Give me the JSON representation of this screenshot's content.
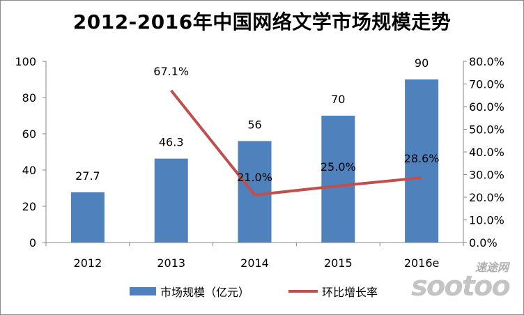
{
  "title": "2012-2016年中国网络文学市场规模走势",
  "colors": {
    "bar": "#4f81bd",
    "line": "#c0504d",
    "grid": "#d9d9d9"
  },
  "watermark": {
    "top_text": "速途网",
    "main_text": "sootoo"
  },
  "chart_data": {
    "type": "bar",
    "title": "2012-2016年中国网络文学市场规模走势",
    "categories": [
      "2012",
      "2013",
      "2014",
      "2015",
      "2016e"
    ],
    "series": [
      {
        "name": "市场规模（亿元）",
        "type": "bar",
        "axis": "left",
        "values": [
          27.7,
          46.3,
          56,
          70,
          90
        ],
        "labels": [
          "27.7",
          "46.3",
          "56",
          "70",
          "90"
        ]
      },
      {
        "name": "环比增长率",
        "type": "line",
        "axis": "right",
        "values": [
          null,
          67.1,
          21.0,
          25.0,
          28.6
        ],
        "labels": [
          "",
          "67.1%",
          "21.0%",
          "25.0%",
          "28.6%"
        ]
      }
    ],
    "y_left": {
      "range": [
        0,
        100
      ],
      "ticks": [
        "0",
        "20",
        "40",
        "60",
        "80",
        "100"
      ]
    },
    "y_right": {
      "range": [
        0,
        80
      ],
      "ticks": [
        "0.0%",
        "10.0%",
        "20.0%",
        "30.0%",
        "40.0%",
        "50.0%",
        "60.0%",
        "70.0%",
        "80.0%"
      ]
    },
    "grid": false,
    "legend": "bottom"
  }
}
